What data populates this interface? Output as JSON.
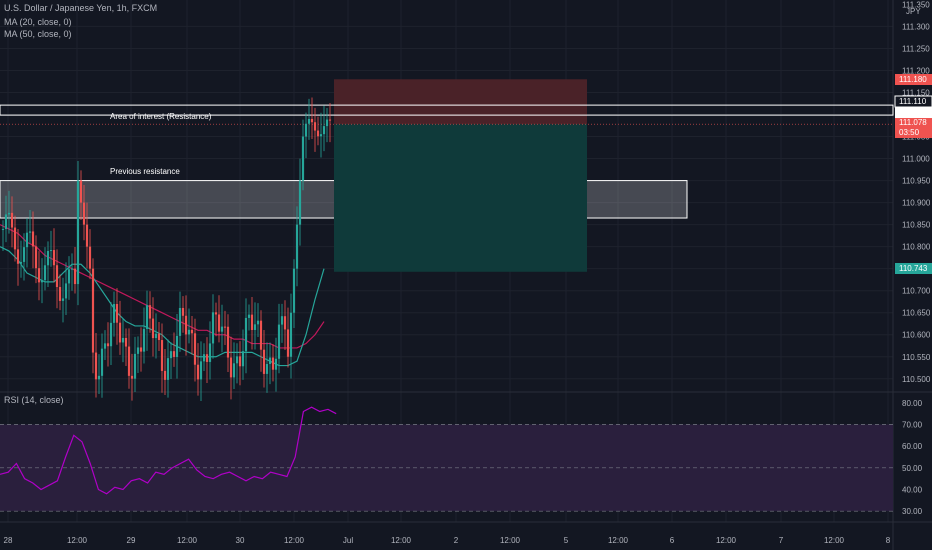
{
  "header": {
    "symbol_line": "U.S. Dollar / Japanese Yen, 1h, FXCM",
    "ma20_label": "MA (20, close, 0)",
    "ma50_label": "MA (50, close, 0)",
    "currency_tag": "JPY"
  },
  "rsi_label": "RSI (14, close)",
  "annotations": {
    "area_of_interest": "Area of interest (Resistance)",
    "previous_resistance": "Previous resistance"
  },
  "price_scale": {
    "ticks": [
      "111.300",
      "111.250",
      "111.200",
      "111.150",
      "111.100",
      "111.050",
      "111.000",
      "110.950",
      "110.900",
      "110.850",
      "110.800",
      "110.750",
      "110.700",
      "110.650",
      "110.600",
      "110.550",
      "110.500"
    ],
    "top_partial": "111.350"
  },
  "badges": {
    "stop": "111.180",
    "resistance": "111.110",
    "current": "111.079",
    "last_close": "111.078",
    "countdown": "03:50",
    "target": "110.743"
  },
  "rsi_scale": [
    "80.00",
    "70.00",
    "60.00",
    "50.00",
    "40.00",
    "30.00"
  ],
  "time_axis": [
    "28",
    "12:00",
    "29",
    "12:00",
    "30",
    "12:00",
    "Jul",
    "12:00",
    "2",
    "12:00",
    "5",
    "12:00",
    "6",
    "12:00",
    "7",
    "12:00",
    "8"
  ],
  "colors": {
    "background": "#131722",
    "bull": "#26a69a",
    "bear": "#ef5350",
    "ma20": "#26a69a",
    "ma50": "#c2185b",
    "rsi_line": "#b000c8",
    "rsi_band": "#2a1f3d",
    "stop_zone": "#4a2228",
    "target_zone": "#0f3a3a"
  },
  "chart_data": {
    "type": "candlestick",
    "ylim": [
      110.47,
      111.36
    ],
    "rsi_ylim": [
      25,
      85
    ],
    "resistance_line": 111.11,
    "current_price_line": 111.078,
    "zones": {
      "previous_resistance": [
        110.865,
        110.95
      ],
      "stop": [
        111.078,
        111.18
      ],
      "target": [
        110.743,
        111.078
      ]
    },
    "ma20": [
      110.8,
      110.79,
      110.77,
      110.74,
      110.73,
      110.72,
      110.72,
      110.74,
      110.76,
      110.76,
      110.74,
      110.71,
      110.68,
      110.65,
      110.63,
      110.62,
      110.62,
      110.61,
      110.6,
      110.58,
      110.57,
      110.56,
      110.55,
      110.55,
      110.55,
      110.56,
      110.56,
      110.56,
      110.56,
      110.55,
      110.54,
      110.53,
      110.53,
      110.54,
      110.6,
      110.68,
      110.75
    ],
    "ma50": [
      110.85,
      110.84,
      110.83,
      110.81,
      110.8,
      110.78,
      110.77,
      110.76,
      110.75,
      110.74,
      110.73,
      110.72,
      110.71,
      110.7,
      110.69,
      110.68,
      110.67,
      110.66,
      110.65,
      110.64,
      110.63,
      110.62,
      110.61,
      110.61,
      110.6,
      110.6,
      110.59,
      110.59,
      110.58,
      110.58,
      110.58,
      110.57,
      110.57,
      110.57,
      110.58,
      110.6,
      110.63
    ],
    "rsi": [
      47,
      48,
      52,
      45,
      43,
      40,
      42,
      44,
      55,
      65,
      62,
      52,
      40,
      38,
      41,
      40,
      44,
      45,
      43,
      48,
      47,
      50,
      52,
      54,
      49,
      46,
      45,
      47,
      48,
      46,
      44,
      46,
      45,
      48,
      47,
      46,
      55,
      76,
      78,
      76,
      77,
      75
    ]
  }
}
